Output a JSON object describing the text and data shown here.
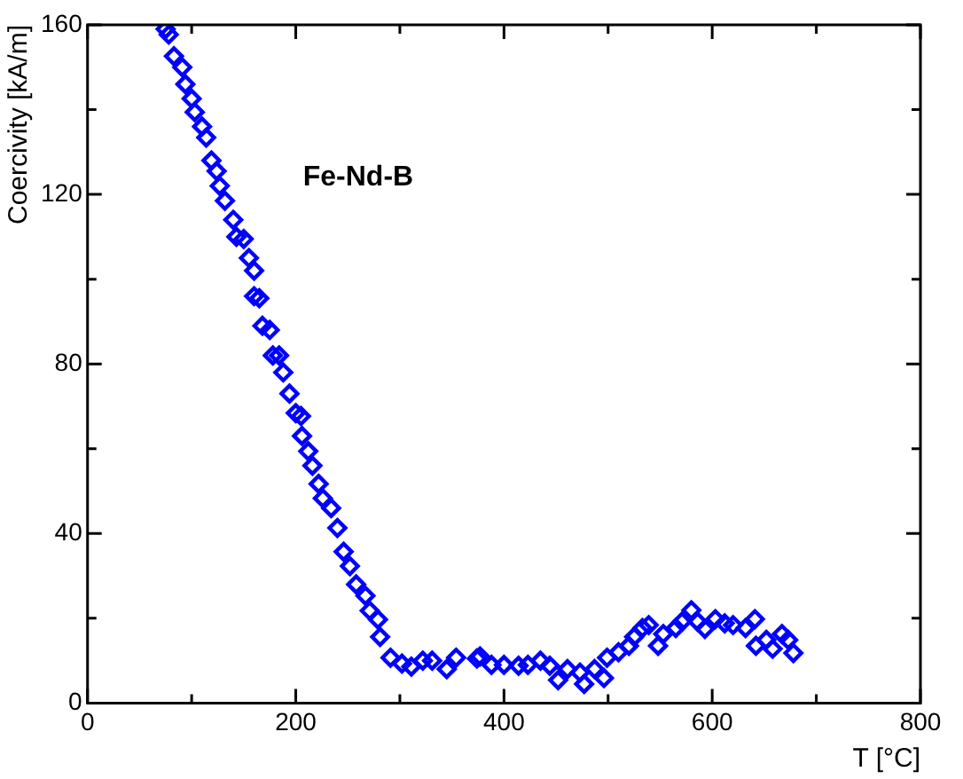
{
  "chart_data": {
    "type": "scatter",
    "xlabel": "T [°C]",
    "ylabel": "Coercivity [kA/m]",
    "annotations": [
      "Fe-Nd-B"
    ],
    "xlim": [
      0,
      800
    ],
    "xticks": [
      0,
      {
        "value": 100,
        "label": null
      },
      200,
      {
        "value": 300,
        "label": null
      },
      400,
      {
        "value": 500,
        "label": null
      },
      600,
      {
        "value": 700,
        "label": null
      },
      800
    ],
    "ylim": [
      0,
      160
    ],
    "yticks": [
      0,
      {
        "value": 20,
        "label": null
      },
      40,
      {
        "value": 60,
        "label": null
      },
      80,
      {
        "value": 100,
        "label": null
      },
      120,
      {
        "value": 140,
        "label": null
      },
      160
    ],
    "grid": false,
    "legend": false,
    "marker": "diamond",
    "series": [
      {
        "color": "#0000ff",
        "x": [
          75,
          78,
          83,
          91,
          94,
          100,
          103,
          110,
          114,
          119,
          124,
          127,
          132,
          140,
          143,
          150,
          155,
          160,
          160,
          165,
          168,
          175,
          178,
          184,
          188,
          194,
          200,
          205,
          206,
          212,
          216,
          222,
          226,
          234,
          240,
          246,
          252,
          258,
          267,
          271,
          279,
          281,
          291,
          302,
          311,
          322,
          331,
          345,
          354,
          374,
          377,
          388,
          400,
          414,
          423,
          435,
          444,
          452,
          461,
          473,
          477,
          487,
          496,
          499,
          510,
          520,
          525,
          533,
          539,
          548,
          553,
          565,
          571,
          580,
          586,
          593,
          603,
          612,
          620,
          632,
          641,
          642,
          652,
          658,
          667,
          673,
          678
        ],
        "values": [
          159,
          157.7,
          152.6,
          150,
          146,
          142.6,
          139.4,
          136,
          133.4,
          128,
          125.5,
          122,
          118.5,
          114,
          110,
          109.5,
          105,
          102,
          96,
          95.5,
          89,
          88,
          82,
          82,
          78,
          73,
          68.4,
          67.7,
          63,
          59.4,
          56,
          51.7,
          48.3,
          46,
          41.3,
          35.7,
          32.3,
          28,
          25.3,
          21.8,
          19.7,
          15.6,
          10.7,
          9.3,
          8.6,
          10,
          10,
          8,
          10.7,
          10.5,
          11,
          9,
          9,
          8.8,
          9,
          10,
          8.8,
          5.4,
          8,
          7.2,
          4.5,
          8,
          5.9,
          10.7,
          12,
          13.5,
          15.6,
          17.7,
          18.4,
          13.5,
          16.3,
          17.7,
          19.2,
          21.9,
          19.2,
          17.5,
          19.8,
          18.8,
          18.4,
          17.7,
          19.8,
          13.5,
          14.9,
          12.8,
          16.3,
          14.9,
          11.8
        ]
      }
    ]
  }
}
